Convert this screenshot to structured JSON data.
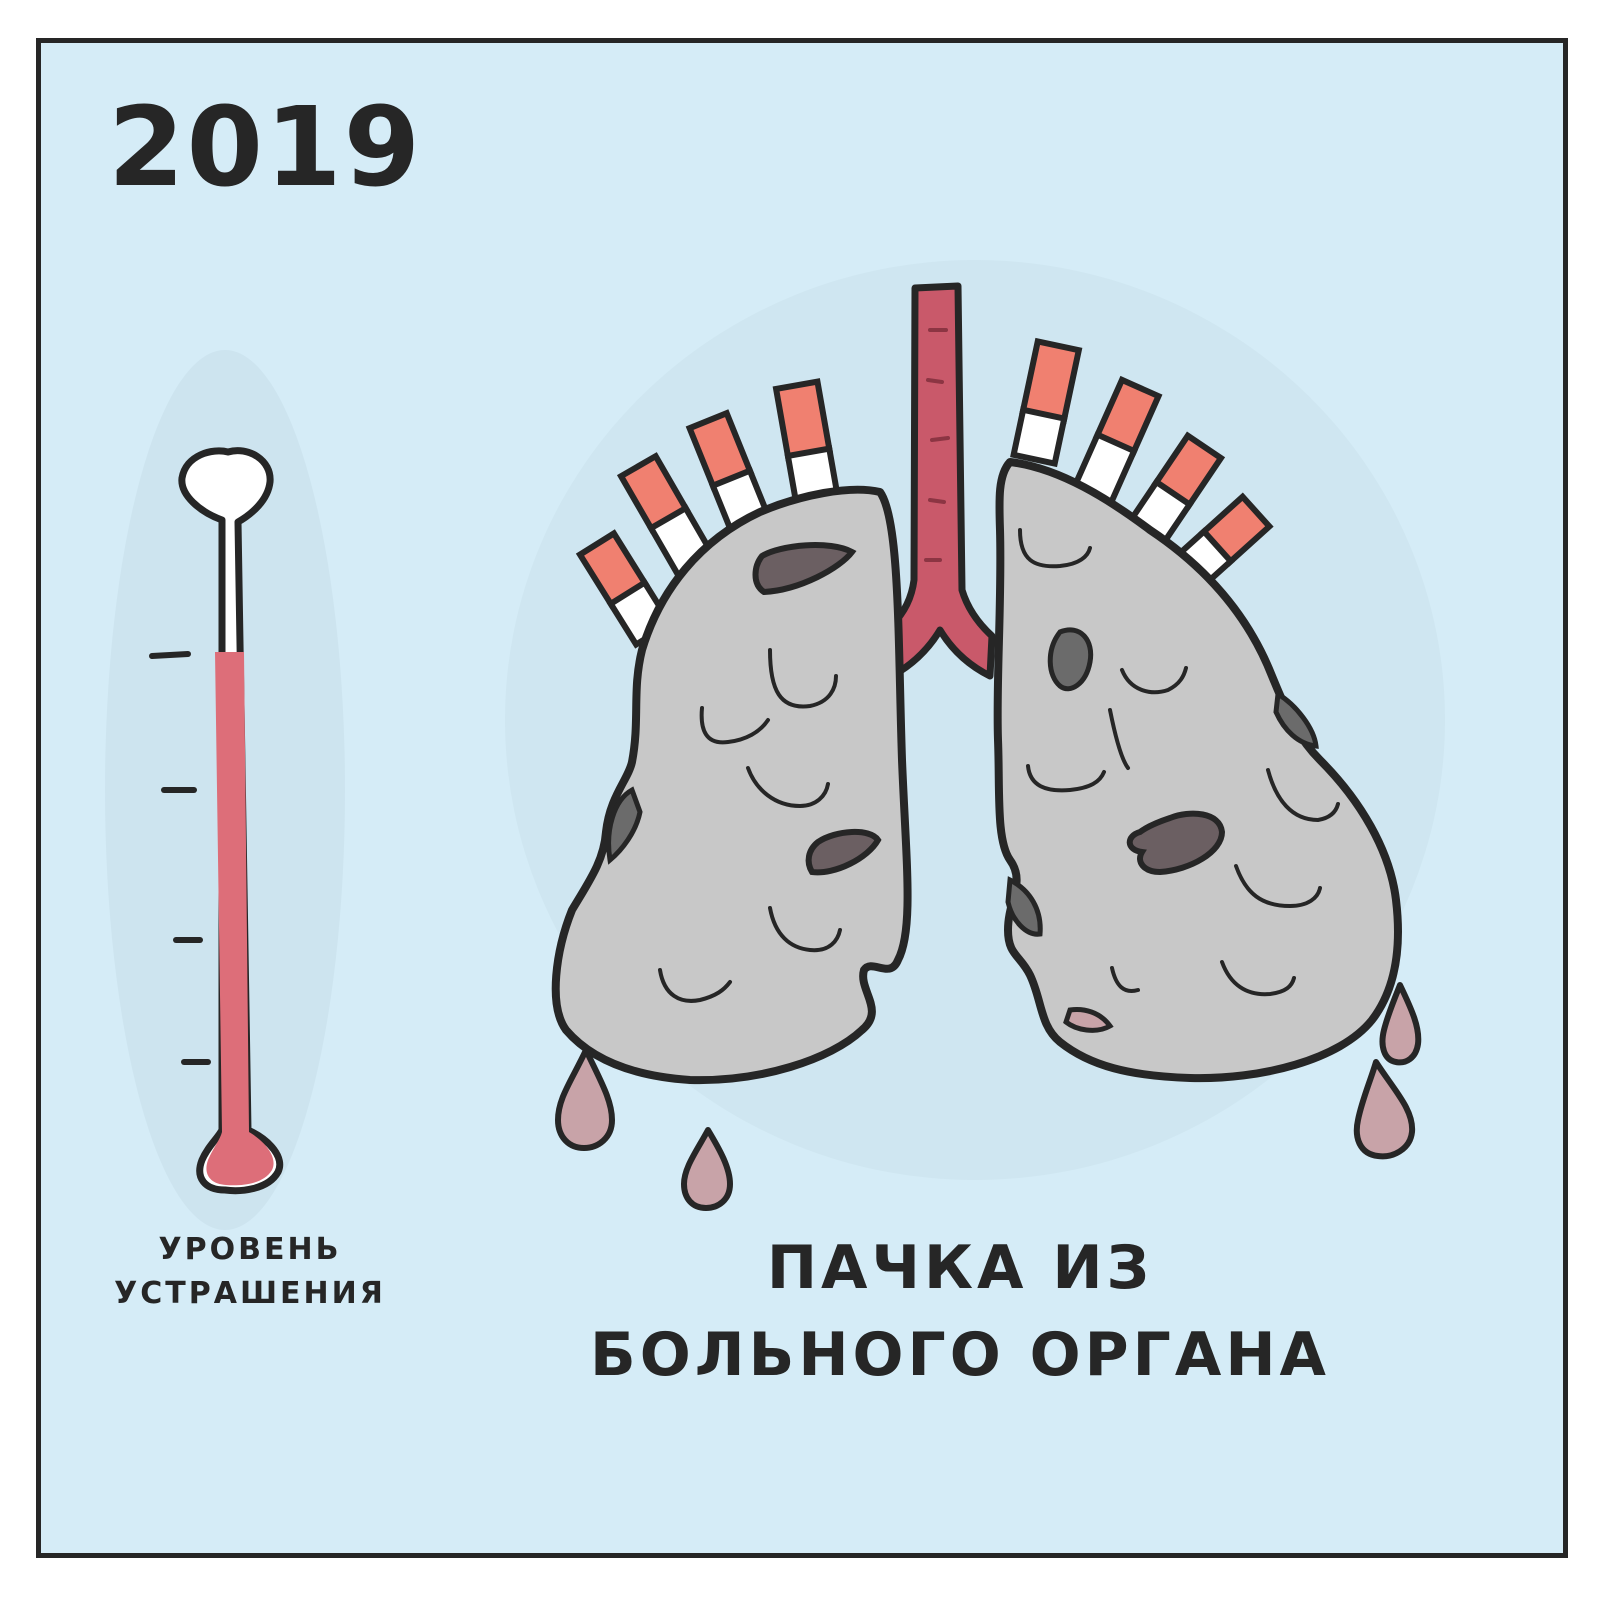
{
  "year": "2019",
  "meter": {
    "label_line1": "УРОВЕНЬ",
    "label_line2": "УСТРАШЕНИЯ",
    "fill_level": 0.79,
    "fill_color": "#dd6e79"
  },
  "caption": {
    "line1": "ПАЧКА ИЗ",
    "line2": "БОЛЬНОГО ОРГАНА"
  },
  "colors": {
    "background": "#d5ecf7",
    "outline": "#262626",
    "lung_fill": "#c8c8c8",
    "lung_spot": "#6b6b6b",
    "trachea": "#c9596a",
    "cigarette_filter": "#f08070",
    "drop": "#c8a3a8"
  },
  "icons": [
    "thermometer-icon",
    "lungs-icon",
    "cigarette-icon",
    "drop-icon"
  ]
}
